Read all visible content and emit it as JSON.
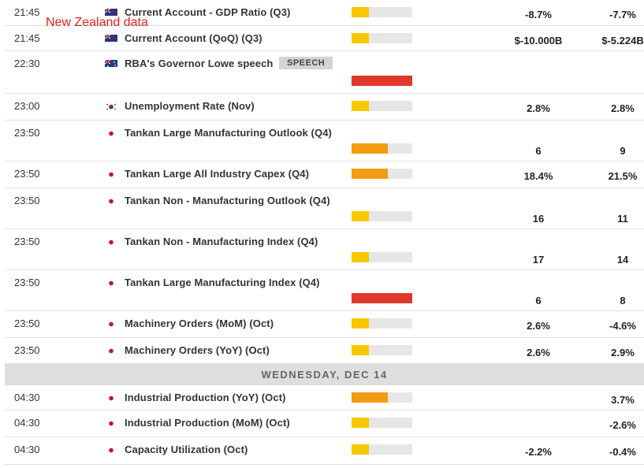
{
  "annotation": "New Zealand data",
  "rows": [
    {
      "time": "21:45",
      "flag": "nz",
      "event": "Current Account - GDP Ratio (Q3)",
      "impact": "low",
      "actual": "-8.7%",
      "previous": "-7.7%"
    },
    {
      "time": "21:45",
      "flag": "nz",
      "event": "Current Account (QoQ) (Q3)",
      "impact": "low",
      "actual": "$-10.000B",
      "previous": "$-5.224B"
    },
    {
      "time": "22:30",
      "flag": "au",
      "event": "RBA's Governor Lowe speech",
      "tag": "SPEECH",
      "impact": "high"
    },
    {
      "time": "23:00",
      "flag": "kr",
      "event": "Unemployment Rate (Nov)",
      "impact": "low",
      "actual": "2.8%",
      "previous": "2.8%"
    },
    {
      "time": "23:50",
      "flag": "jp",
      "event": "Tankan Large Manufacturing Outlook (Q4)",
      "impact": "medium",
      "actual": "6",
      "previous": "9"
    },
    {
      "time": "23:50",
      "flag": "jp",
      "event": "Tankan Large All Industry Capex (Q4)",
      "impact": "medium",
      "actual": "18.4%",
      "previous": "21.5%"
    },
    {
      "time": "23:50",
      "flag": "jp",
      "event": "Tankan Non - Manufacturing Outlook (Q4)",
      "impact": "low",
      "actual": "16",
      "previous": "11"
    },
    {
      "time": "23:50",
      "flag": "jp",
      "event": "Tankan Non - Manufacturing Index (Q4)",
      "impact": "low",
      "actual": "17",
      "previous": "14"
    },
    {
      "time": "23:50",
      "flag": "jp",
      "event": "Tankan Large Manufacturing Index (Q4)",
      "impact": "high",
      "actual": "6",
      "previous": "8"
    },
    {
      "time": "23:50",
      "flag": "jp",
      "event": "Machinery Orders (MoM) (Oct)",
      "impact": "low",
      "actual": "2.6%",
      "previous": "-4.6%"
    },
    {
      "time": "23:50",
      "flag": "jp",
      "event": "Machinery Orders (YoY) (Oct)",
      "impact": "low",
      "actual": "2.6%",
      "previous": "2.9%"
    },
    {
      "day": "WEDNESDAY, DEC 14"
    },
    {
      "time": "04:30",
      "flag": "jp",
      "event": "Industrial Production (YoY) (Oct)",
      "impact": "medium",
      "previous": "3.7%"
    },
    {
      "time": "04:30",
      "flag": "jp",
      "event": "Industrial Production (MoM) (Oct)",
      "impact": "low",
      "previous": "-2.6%"
    },
    {
      "time": "04:30",
      "flag": "jp",
      "event": "Capacity Utilization (Oct)",
      "impact": "low",
      "actual": "-2.2%",
      "previous": "-0.4%"
    }
  ]
}
